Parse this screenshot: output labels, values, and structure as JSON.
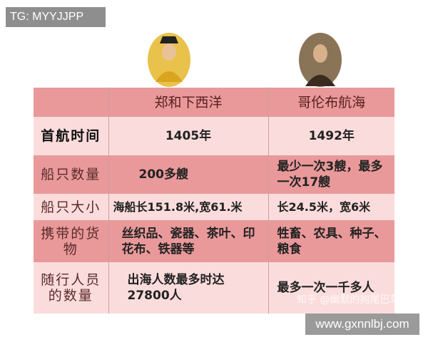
{
  "tag": "TG: MYYJJPP",
  "site": "www.gxnnlbj.com",
  "watermark": "知乎 @幽默的狗尾巴草",
  "table": {
    "headers": [
      "",
      "郑和下西洋",
      "哥伦布航海"
    ],
    "rows": [
      {
        "label": "首航时间",
        "zheng": "1405年",
        "columbus": "1492年"
      },
      {
        "label": "船只数量",
        "zheng": "200多艘",
        "columbus": "最少一次3艘，最多一次17艘"
      },
      {
        "label": "船只大小",
        "zheng": "海船长151.8米,宽61.米",
        "columbus": "长24.5米，宽6米"
      },
      {
        "label": "携带的货物",
        "zheng": "丝织品、瓷器、茶叶、印花布、铁器等",
        "columbus": "牲畜、农具、种子、粮食"
      },
      {
        "label": "随行人员的数量",
        "zheng": "出海人数最多时达27800人",
        "columbus": "最多一次一千多人"
      }
    ]
  },
  "colors": {
    "header_row": "#e9999a",
    "light_row": "#fbdcdc"
  }
}
